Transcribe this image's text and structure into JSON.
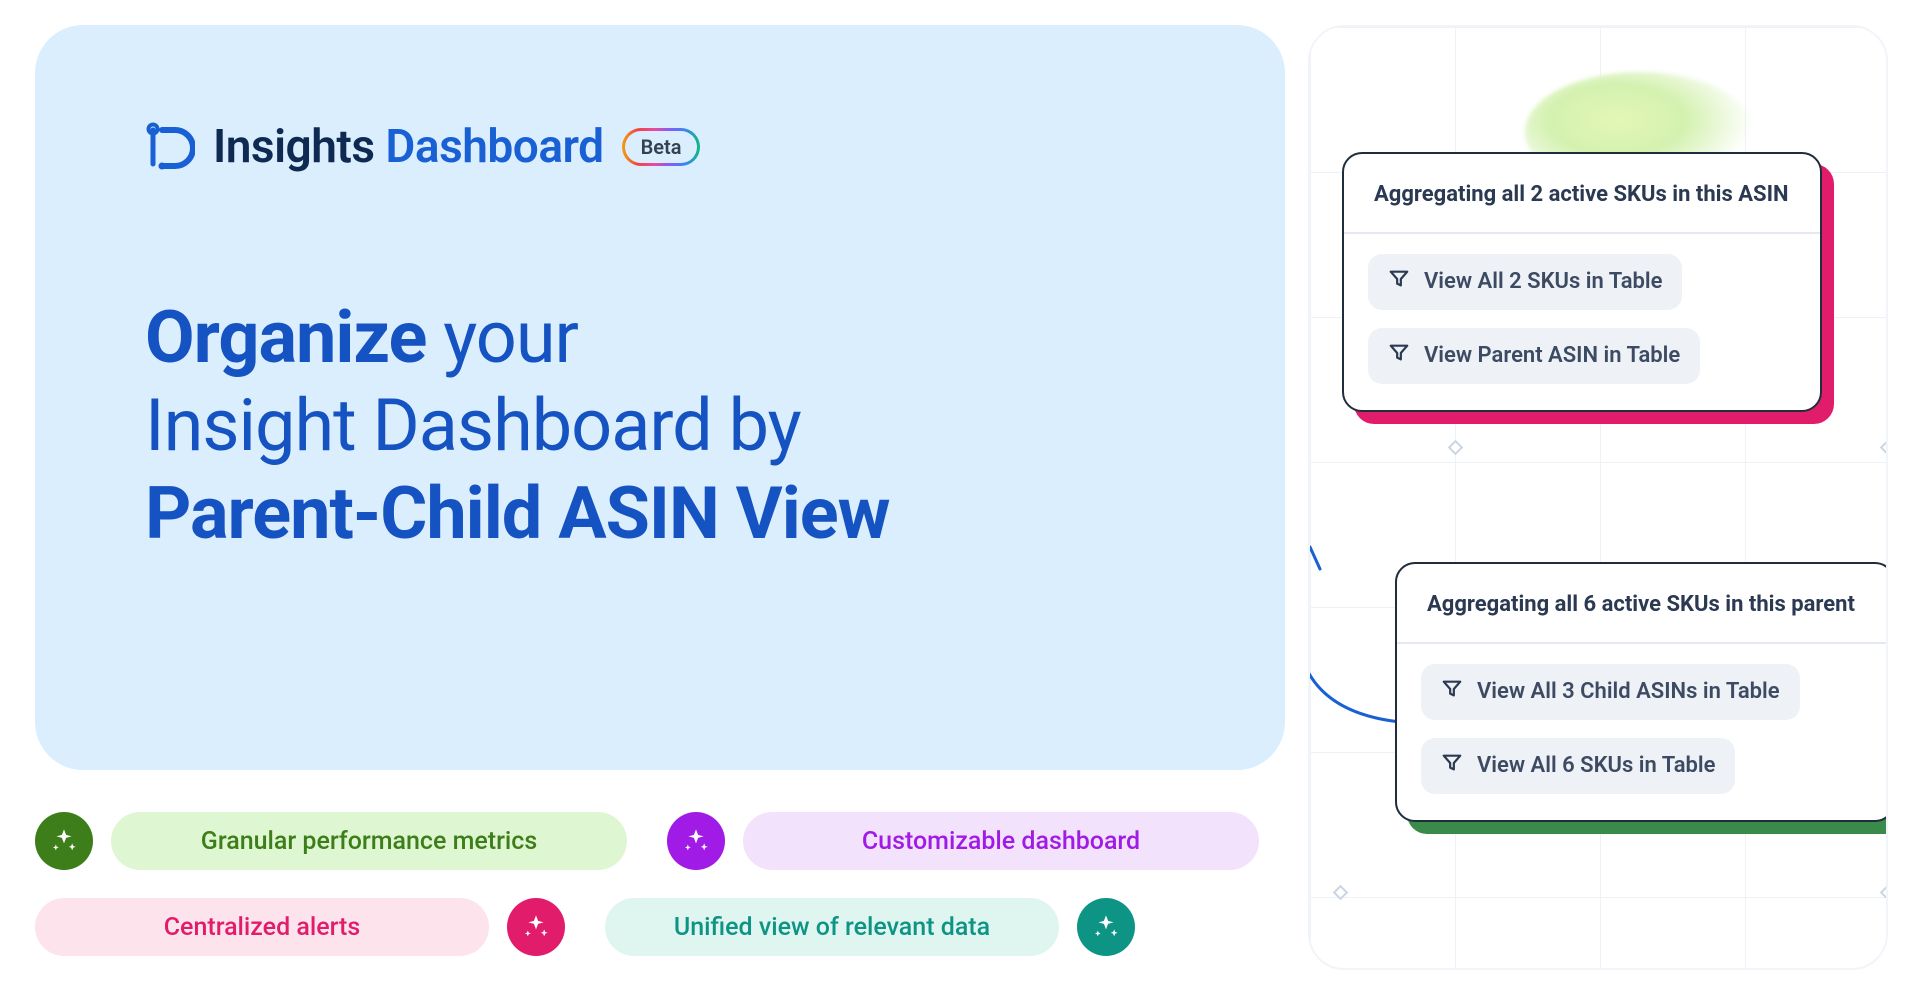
{
  "logo": {
    "insights": "Insights",
    "dashboard": "Dashboard",
    "beta": "Beta"
  },
  "headline": {
    "w1": "Organize",
    "w2": " your",
    "l2": "Insight Dashboard by",
    "l3": "Parent-Child ASIN View"
  },
  "features": [
    {
      "label": "Granular performance metrics",
      "side": "left",
      "dot_color": "#3e7e1a",
      "pill_bg": "#def6d1",
      "text_color": "#3e7e1a"
    },
    {
      "label": "Customizable dashboard",
      "side": "left",
      "dot_color": "#a11be6",
      "pill_bg": "#f2e2fb",
      "text_color": "#a11be6"
    },
    {
      "label": "Centralized alerts",
      "side": "right",
      "dot_color": "#e11d6b",
      "pill_bg": "#fde4ec",
      "text_color": "#e11d6b"
    },
    {
      "label": "Unified view of relevant data",
      "side": "right",
      "dot_color": "#0d9485",
      "pill_bg": "#dff5f0",
      "text_color": "#0d9485"
    }
  ],
  "cards": {
    "card1": {
      "title": "Aggregating all 2 active SKUs in this ASIN",
      "buttons": [
        "View All 2 SKUs in Table",
        "View Parent ASIN in Table"
      ],
      "shadow_color": "#e11d6b"
    },
    "card2": {
      "title": "Aggregating all 6 active SKUs in this parent",
      "buttons": [
        "View All 3 Child ASINs in Table",
        "View All 6 SKUs in Table"
      ],
      "shadow_color": "#3a8a4a"
    }
  },
  "colors": {
    "hero_bg": "#dbeefd",
    "headline_color": "#1552c2",
    "logo_insights": "#0f2a52",
    "logo_dashboard": "#1860d3",
    "card_border": "#1f2d3d",
    "pill_bg": "#eef1f5",
    "pill_text": "#3c4a63",
    "grid_line": "#eef2f6",
    "arrow_color": "#1860d3"
  }
}
